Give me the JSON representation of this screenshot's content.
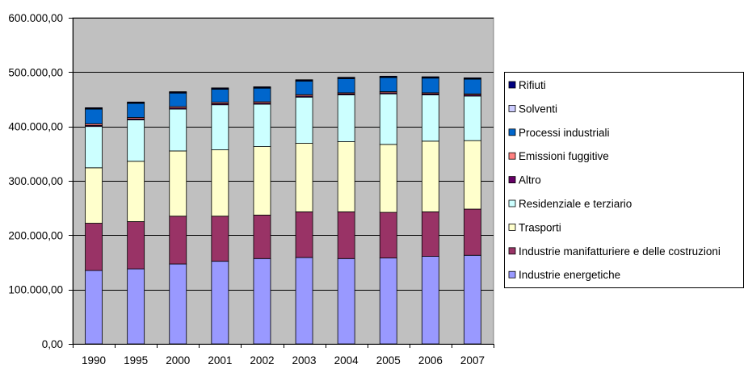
{
  "chart_data": {
    "type": "bar",
    "stacked": true,
    "title": "",
    "xlabel": "",
    "ylabel": "",
    "ylim": [
      0,
      600000
    ],
    "y_ticks": [
      "0,00",
      "100.000,00",
      "200.000,00",
      "300.000,00",
      "400.000,00",
      "500.000,00",
      "600.000,00"
    ],
    "y_tick_values": [
      0,
      100000,
      200000,
      300000,
      400000,
      500000,
      600000
    ],
    "grid": true,
    "legend_position": "right",
    "plot_background": "#C0C0C0",
    "categories": [
      "1990",
      "1995",
      "2000",
      "2001",
      "2002",
      "2003",
      "2004",
      "2005",
      "2006",
      "2007"
    ],
    "series": [
      {
        "name": "Industrie energetiche",
        "color": "#9999FF",
        "values": [
          135000,
          138000,
          147000,
          152000,
          157000,
          159000,
          157000,
          158000,
          161000,
          163000
        ]
      },
      {
        "name": "Industrie manifatturiere e delle costruzioni",
        "color": "#993366",
        "values": [
          87000,
          87000,
          88000,
          83000,
          80000,
          84000,
          86000,
          84000,
          82000,
          85000
        ]
      },
      {
        "name": "Trasporti",
        "color": "#FFFFCC",
        "values": [
          102000,
          111000,
          120000,
          122000,
          126000,
          126000,
          129000,
          125000,
          130000,
          126000
        ]
      },
      {
        "name": "Residenziale e terziario",
        "color": "#CCFFFF",
        "values": [
          76000,
          76000,
          77000,
          83000,
          78000,
          85000,
          86000,
          93000,
          85000,
          82000
        ]
      },
      {
        "name": "Altro",
        "color": "#660066",
        "values": [
          2000,
          2000,
          2000,
          2000,
          2000,
          2000,
          2000,
          2000,
          2000,
          2000
        ]
      },
      {
        "name": "Emissioni fuggitive",
        "color": "#FF8080",
        "values": [
          3000,
          2500,
          2500,
          2500,
          2500,
          2500,
          2000,
          2000,
          2000,
          2000
        ]
      },
      {
        "name": "Processi industriali",
        "color": "#0066CC",
        "values": [
          27000,
          26000,
          25000,
          24000,
          25000,
          25000,
          26000,
          26000,
          27000,
          27000
        ]
      },
      {
        "name": "Solventi",
        "color": "#CCCCFF",
        "values": [
          1000,
          1000,
          1000,
          1000,
          1000,
          1000,
          1000,
          1000,
          1000,
          1000
        ]
      },
      {
        "name": "Rifiuti",
        "color": "#000080",
        "values": [
          1500,
          1500,
          1500,
          1500,
          1500,
          1500,
          1500,
          1500,
          1500,
          1500
        ]
      }
    ],
    "legend_order": [
      "Rifiuti",
      "Solventi",
      "Processi industriali",
      "Emissioni fuggitive",
      "Altro",
      "Residenziale e terziario",
      "Trasporti",
      "Industrie manifatturiere e delle costruzioni",
      "Industrie energetiche"
    ]
  }
}
